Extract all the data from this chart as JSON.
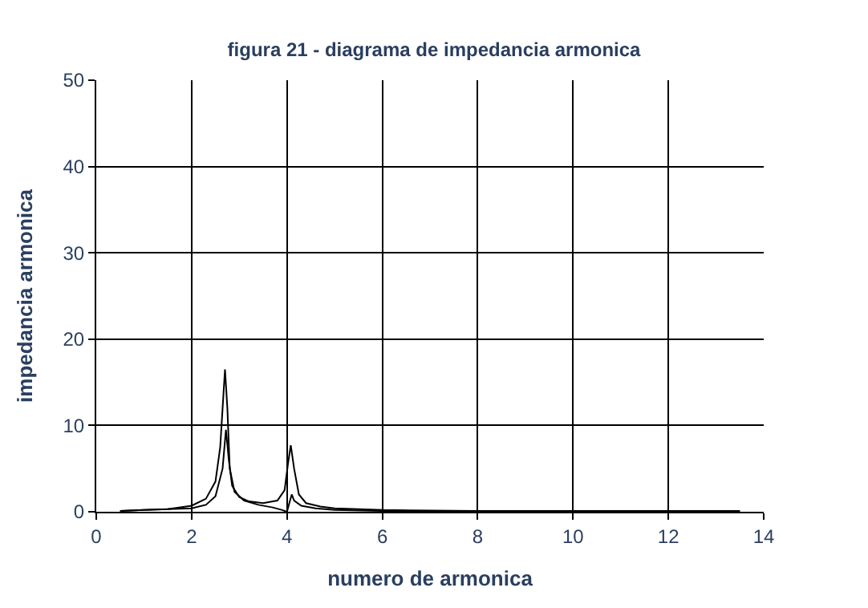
{
  "chart_data": {
    "type": "line",
    "title": "figura 21 - diagrama de impedancia armonica",
    "xlabel": "numero de armonica",
    "ylabel": "impedancia armonica",
    "xlim": [
      0,
      14
    ],
    "xticks": [
      0,
      2,
      4,
      6,
      8,
      10,
      12,
      14
    ],
    "ylim": [
      0,
      50
    ],
    "yticks": [
      0,
      10,
      20,
      30,
      40,
      50
    ],
    "grid": true,
    "marker": "none",
    "line_style": "solid",
    "series": [
      {
        "color": "#000000",
        "x": [
          0.5,
          1.0,
          1.5,
          2.0,
          2.3,
          2.5,
          2.6,
          2.65,
          2.7,
          2.75,
          2.8,
          2.9,
          3.1,
          3.4,
          3.7,
          3.9,
          4.0,
          4.05,
          4.1,
          4.15,
          4.3,
          4.6,
          5.0,
          6.0,
          8.0,
          10.0,
          12.0,
          13.5
        ],
        "values": [
          0.1,
          0.2,
          0.3,
          0.7,
          1.5,
          3.5,
          7.5,
          12,
          16.5,
          12,
          5,
          2.3,
          1.3,
          0.8,
          0.5,
          0.2,
          0,
          1,
          2,
          1.3,
          0.7,
          0.4,
          0.2,
          0.1,
          0.1,
          0.1,
          0.1,
          0.1
        ]
      },
      {
        "color": "#000000",
        "x": [
          0.5,
          1.0,
          1.5,
          2.0,
          2.3,
          2.5,
          2.65,
          2.72,
          2.78,
          2.85,
          3.0,
          3.2,
          3.5,
          3.8,
          3.95,
          4.02,
          4.08,
          4.15,
          4.25,
          4.4,
          4.7,
          5.0,
          5.5,
          6.0,
          8.0,
          10.0,
          12.0,
          13.5
        ],
        "values": [
          0.1,
          0.2,
          0.3,
          0.4,
          0.8,
          1.8,
          5,
          9.5,
          6,
          3,
          1.7,
          1.2,
          1,
          1.3,
          2.5,
          5.5,
          7.7,
          5,
          2,
          1,
          0.6,
          0.4,
          0.3,
          0.2,
          0.1,
          0.1,
          0.1,
          0.1
        ]
      }
    ]
  }
}
